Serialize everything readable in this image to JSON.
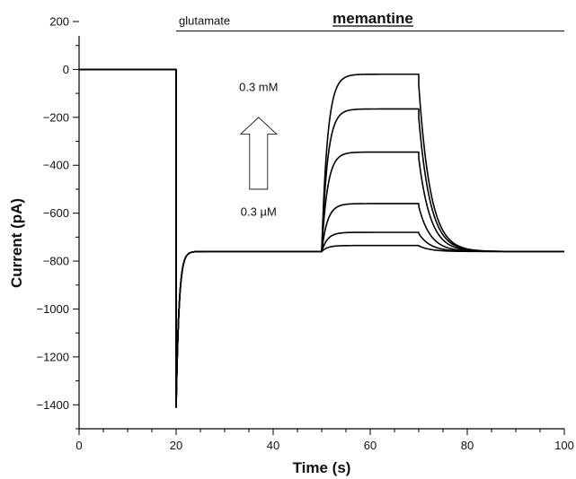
{
  "chart_data": {
    "type": "line",
    "title": "memantine",
    "xlabel": "Time (s)",
    "ylabel": "Current (pA)",
    "xlim": [
      0,
      100
    ],
    "ylim": [
      -1500,
      200
    ],
    "x_ticks": [
      0,
      20,
      40,
      60,
      80,
      100
    ],
    "y_ticks": [
      200,
      0,
      -200,
      -400,
      -600,
      -800,
      -1000,
      -1200,
      -1400
    ],
    "x_tick_labels": [
      "0",
      "20",
      "40",
      "60",
      "80",
      "100"
    ],
    "y_tick_labels": [
      "200",
      "0",
      "−200",
      "−400",
      "−600",
      "−800",
      "−1000",
      "−1200",
      "−1400"
    ],
    "grid": false,
    "glutamate_bar": {
      "label": "glutamate",
      "x_start": 20,
      "x_end": 100,
      "y": 160
    },
    "memantine_application": {
      "x_start": 50,
      "x_end": 70
    },
    "concentration_arrow": {
      "label_high": "0.3 mM",
      "label_low": "0.3 µM",
      "x": 37
    },
    "baseline_before": 0,
    "glutamate_onset": 20,
    "glutamate_peak": -1410,
    "steady_state": -760,
    "series": [
      {
        "steady_value": -735
      },
      {
        "steady_value": -680
      },
      {
        "steady_value": -560
      },
      {
        "steady_value": -345
      },
      {
        "steady_value": -165
      },
      {
        "steady_value": -20
      }
    ]
  }
}
